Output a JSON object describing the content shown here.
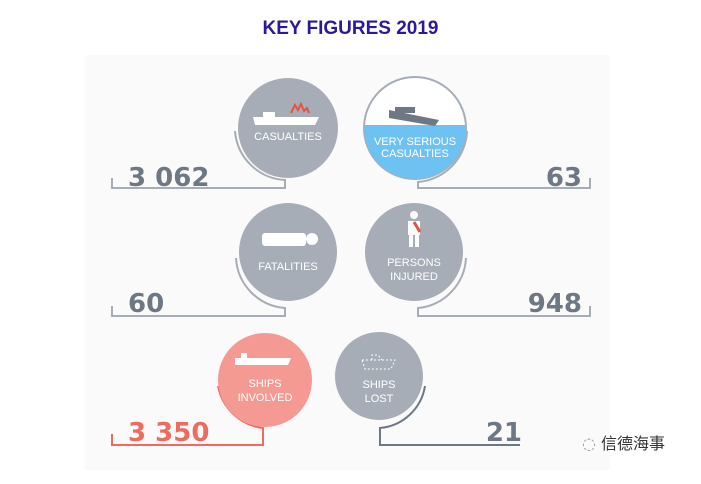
{
  "title": "KEY FIGURES 2019",
  "colors": {
    "title": "#2a1a9a",
    "grey": "#a7adb6",
    "number_grey": "#6e7885",
    "red": "#f59a93",
    "red_text": "#ef6a5f",
    "water": "#6ec2f2"
  },
  "figures": [
    {
      "label": [
        "CASUALTIES"
      ],
      "value": "3 062",
      "icon": "ship-fire-icon"
    },
    {
      "label": [
        "VERY SERIOUS",
        "CASUALTIES"
      ],
      "value": "63",
      "icon": "sinking-ship-icon"
    },
    {
      "label": [
        "FATALITIES"
      ],
      "value": "60",
      "icon": "lying-person-icon"
    },
    {
      "label": [
        "PERSONS",
        "INJURED"
      ],
      "value": "948",
      "icon": "injured-person-icon"
    },
    {
      "label": [
        "SHIPS",
        "INVOLVED"
      ],
      "value": "3 350",
      "icon": "ship-icon"
    },
    {
      "label": [
        "SHIPS",
        "LOST"
      ],
      "value": "21",
      "icon": "dashed-ship-icon"
    }
  ],
  "watermark": "信德海事"
}
